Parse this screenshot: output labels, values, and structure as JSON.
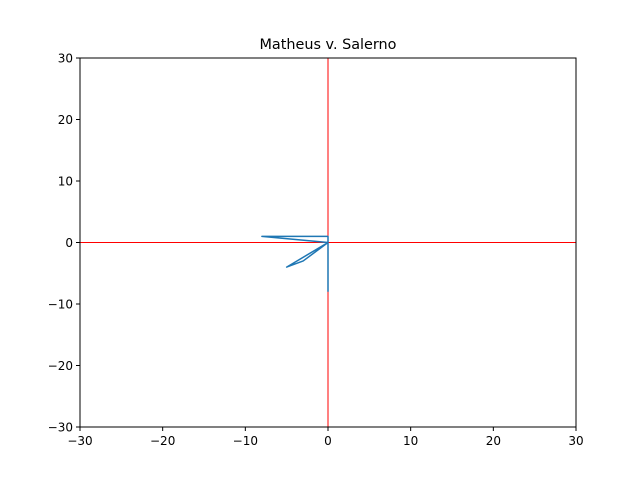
{
  "chart_data": {
    "type": "line",
    "title": "Matheus v. Salerno",
    "xlabel": "",
    "ylabel": "",
    "xlim": [
      -30,
      30
    ],
    "ylim": [
      -30,
      30
    ],
    "grid": false,
    "x_ticks": [
      -30,
      -20,
      -10,
      0,
      10,
      20,
      30
    ],
    "y_ticks": [
      -30,
      -20,
      -10,
      0,
      10,
      20,
      30
    ],
    "x_tick_labels": [
      "−30",
      "−20",
      "−10",
      "0",
      "10",
      "20",
      "30"
    ],
    "y_tick_labels": [
      "−30",
      "−20",
      "−10",
      "0",
      "10",
      "20",
      "30"
    ],
    "reference_lines": [
      {
        "orientation": "horizontal",
        "value": 0,
        "color": "#ff0000"
      },
      {
        "orientation": "vertical",
        "value": 0,
        "color": "#ff0000"
      }
    ],
    "series": [
      {
        "color": "#1f77b4",
        "points": [
          [
            0,
            -8
          ],
          [
            0,
            1
          ],
          [
            -8,
            1
          ],
          [
            0,
            0
          ],
          [
            -5,
            -4
          ],
          [
            -3,
            -3
          ],
          [
            0,
            0
          ],
          [
            0,
            1
          ]
        ]
      }
    ]
  }
}
